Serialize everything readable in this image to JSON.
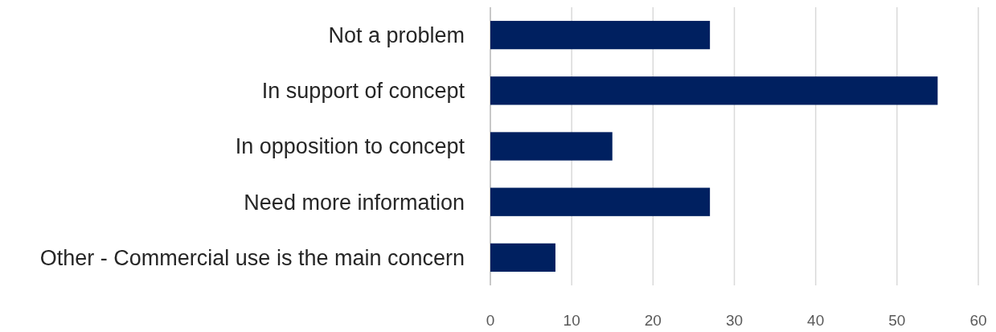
{
  "chart_data": {
    "type": "bar",
    "orientation": "horizontal",
    "categories": [
      "Not a problem",
      "In support of concept",
      "In opposition to concept",
      "Need more information",
      "Other - Commercial use is the main concern"
    ],
    "values": [
      27,
      55,
      15,
      27,
      8
    ],
    "color": "#002060",
    "xlim": [
      0,
      60
    ],
    "xticks": [
      0,
      10,
      20,
      30,
      40,
      50,
      60
    ],
    "grid": "x"
  }
}
